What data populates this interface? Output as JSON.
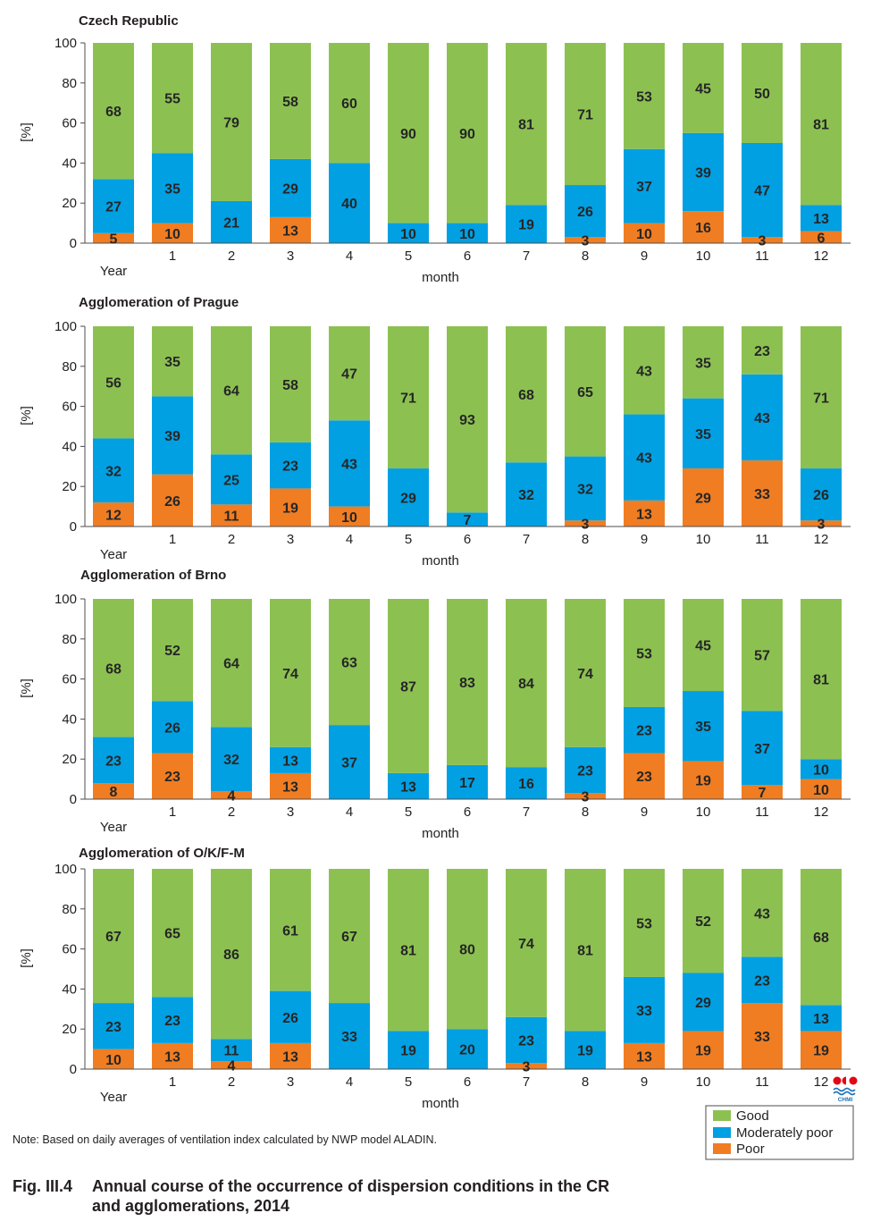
{
  "chart_data": [
    {
      "type": "bar",
      "stacked": true,
      "grid": false,
      "title": "Czech Republic",
      "categories": [
        "Year",
        "1",
        "2",
        "3",
        "4",
        "5",
        "6",
        "7",
        "8",
        "9",
        "10",
        "11",
        "12"
      ],
      "xlabel": "month",
      "ylabel": "[%]",
      "ylim": [
        0,
        100
      ],
      "yticks": [
        0,
        20,
        40,
        60,
        80,
        100
      ],
      "series": [
        {
          "name": "Good",
          "color": "#8cc152",
          "values": [
            68,
            55,
            79,
            58,
            60,
            90,
            90,
            81,
            71,
            53,
            45,
            50,
            81
          ]
        },
        {
          "name": "Moderately poor",
          "color": "#00a0e3",
          "values": [
            27,
            35,
            21,
            29,
            40,
            10,
            10,
            19,
            26,
            37,
            39,
            47,
            13
          ]
        },
        {
          "name": "Poor",
          "color": "#f07d22",
          "values": [
            5,
            10,
            0,
            13,
            0,
            0,
            0,
            0,
            3,
            10,
            16,
            3,
            6
          ]
        }
      ]
    },
    {
      "type": "bar",
      "stacked": true,
      "grid": false,
      "title": "Agglomeration of Prague",
      "categories": [
        "Year",
        "1",
        "2",
        "3",
        "4",
        "5",
        "6",
        "7",
        "8",
        "9",
        "10",
        "11",
        "12"
      ],
      "xlabel": "month",
      "ylabel": "[%]",
      "ylim": [
        0,
        100
      ],
      "yticks": [
        0,
        20,
        40,
        60,
        80,
        100
      ],
      "series": [
        {
          "name": "Good",
          "color": "#8cc152",
          "values": [
            56,
            35,
            64,
            58,
            47,
            71,
            93,
            68,
            65,
            43,
            35,
            23,
            71
          ]
        },
        {
          "name": "Moderately poor",
          "color": "#00a0e3",
          "values": [
            32,
            39,
            25,
            23,
            43,
            29,
            7,
            32,
            32,
            43,
            35,
            43,
            26
          ]
        },
        {
          "name": "Poor",
          "color": "#f07d22",
          "values": [
            12,
            26,
            11,
            19,
            10,
            0,
            0,
            0,
            3,
            13,
            29,
            33,
            3
          ]
        }
      ]
    },
    {
      "type": "bar",
      "stacked": true,
      "grid": false,
      "title": "Agglomeration of Brno",
      "categories": [
        "Year",
        "1",
        "2",
        "3",
        "4",
        "5",
        "6",
        "7",
        "8",
        "9",
        "10",
        "11",
        "12"
      ],
      "xlabel": "month",
      "ylabel": "[%]",
      "ylim": [
        0,
        100
      ],
      "yticks": [
        0,
        20,
        40,
        60,
        80,
        100
      ],
      "series": [
        {
          "name": "Good",
          "color": "#8cc152",
          "values": [
            68,
            52,
            64,
            74,
            63,
            87,
            83,
            84,
            74,
            53,
            45,
            57,
            81
          ]
        },
        {
          "name": "Moderately poor",
          "color": "#00a0e3",
          "values": [
            23,
            26,
            32,
            13,
            37,
            13,
            17,
            16,
            23,
            23,
            35,
            37,
            10
          ]
        },
        {
          "name": "Poor",
          "color": "#f07d22",
          "values": [
            8,
            23,
            4,
            13,
            0,
            0,
            0,
            0,
            3,
            23,
            19,
            7,
            10
          ]
        }
      ]
    },
    {
      "type": "bar",
      "stacked": true,
      "grid": false,
      "legend": "bottom-right",
      "title": "Agglomeration of O/K/F-M",
      "categories": [
        "Year",
        "1",
        "2",
        "3",
        "4",
        "5",
        "6",
        "7",
        "8",
        "9",
        "10",
        "11",
        "12"
      ],
      "xlabel": "month",
      "ylabel": "[%]",
      "ylim": [
        0,
        100
      ],
      "yticks": [
        0,
        20,
        40,
        60,
        80,
        100
      ],
      "series": [
        {
          "name": "Good",
          "color": "#8cc152",
          "values": [
            67,
            65,
            86,
            61,
            67,
            81,
            80,
            74,
            81,
            53,
            52,
            43,
            68
          ]
        },
        {
          "name": "Moderately poor",
          "color": "#00a0e3",
          "values": [
            23,
            23,
            11,
            26,
            33,
            19,
            20,
            23,
            19,
            33,
            29,
            23,
            13
          ]
        },
        {
          "name": "Poor",
          "color": "#f07d22",
          "values": [
            10,
            13,
            4,
            13,
            0,
            0,
            0,
            3,
            0,
            13,
            19,
            33,
            19
          ]
        }
      ]
    }
  ],
  "note": "Note: Based on daily averages of ventilation index calculated by NWP model ALADIN.",
  "caption": {
    "label": "Fig. III.4",
    "title_line1": "Annual course of the occurrence of dispersion conditions in the CR",
    "title_line2": "and agglomerations, 2014"
  },
  "logo": {
    "text": "CHMI"
  }
}
